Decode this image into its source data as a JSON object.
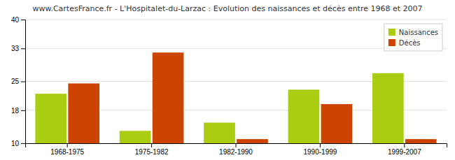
{
  "chart_data": {
    "type": "bar",
    "title": "www.CartesFrance.fr - L'Hospitalet-du-Larzac : Evolution des naissances et décès entre 1968 et 2007",
    "categories": [
      "1968-1975",
      "1975-1982",
      "1982-1990",
      "1990-1999",
      "1999-2007"
    ],
    "series": [
      {
        "name": "Naissances",
        "color": "#aacc11",
        "values": [
          22,
          13,
          15,
          23,
          27
        ]
      },
      {
        "name": "Décès",
        "color": "#cc4400",
        "values": [
          24.5,
          32,
          11,
          19.5,
          11
        ]
      }
    ],
    "ylim": [
      10,
      40
    ],
    "yticks": [
      10,
      18,
      25,
      33,
      40
    ],
    "grid": true,
    "legend": "upper right"
  }
}
